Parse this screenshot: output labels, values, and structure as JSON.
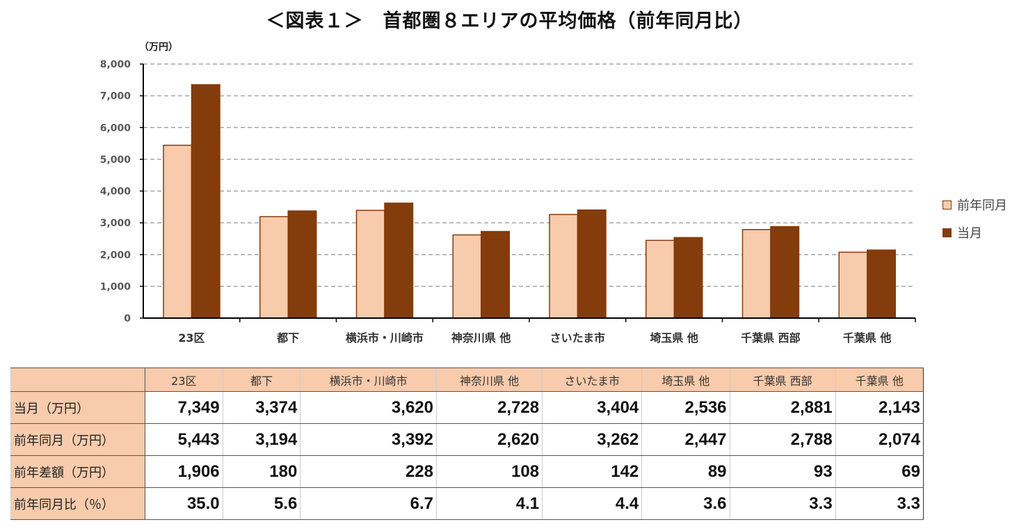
{
  "title": "＜図表１＞　首都圏８エリアの平均価格（前年同月比）",
  "chart_data": {
    "type": "bar",
    "title": "＜図表１＞　首都圏８エリアの平均価格（前年同月比）",
    "ylabel": "（万円）",
    "ylim": [
      0,
      8000
    ],
    "yticks": [
      "0",
      "1,000",
      "2,000",
      "3,000",
      "4,000",
      "5,000",
      "6,000",
      "7,000",
      "8,000"
    ],
    "grid": true,
    "legend_position": "right",
    "categories": [
      "23区",
      "都下",
      "横浜市・川崎市",
      "神奈川県 他",
      "さいたま市",
      "埼玉県 他",
      "千葉県 西部",
      "千葉県 他"
    ],
    "series": [
      {
        "name": "前年同月",
        "color": "#f7cbab",
        "values": [
          5443,
          3194,
          3392,
          2620,
          3262,
          2447,
          2788,
          2074
        ]
      },
      {
        "name": "当月",
        "color": "#843c0c",
        "values": [
          7349,
          3374,
          3620,
          2728,
          3404,
          2536,
          2881,
          2143
        ]
      }
    ]
  },
  "table": {
    "columns": [
      "23区",
      "都下",
      "横浜市・川崎市",
      "神奈川県 他",
      "さいたま市",
      "埼玉県 他",
      "千葉県 西部",
      "千葉県 他"
    ],
    "rows": [
      {
        "label": "当月（万円）",
        "values": [
          "7,349",
          "3,374",
          "3,620",
          "2,728",
          "3,404",
          "2,536",
          "2,881",
          "2,143"
        ]
      },
      {
        "label": "前年同月（万円）",
        "values": [
          "5,443",
          "3,194",
          "3,392",
          "2,620",
          "3,262",
          "2,447",
          "2,788",
          "2,074"
        ]
      },
      {
        "label": "前年差額（万円）",
        "values": [
          "1,906",
          "180",
          "228",
          "108",
          "142",
          "89",
          "93",
          "69"
        ]
      },
      {
        "label": "前年同月比（％）",
        "values": [
          "35.0",
          "5.6",
          "6.7",
          "4.1",
          "4.4",
          "3.6",
          "3.3",
          "3.3"
        ]
      }
    ]
  }
}
